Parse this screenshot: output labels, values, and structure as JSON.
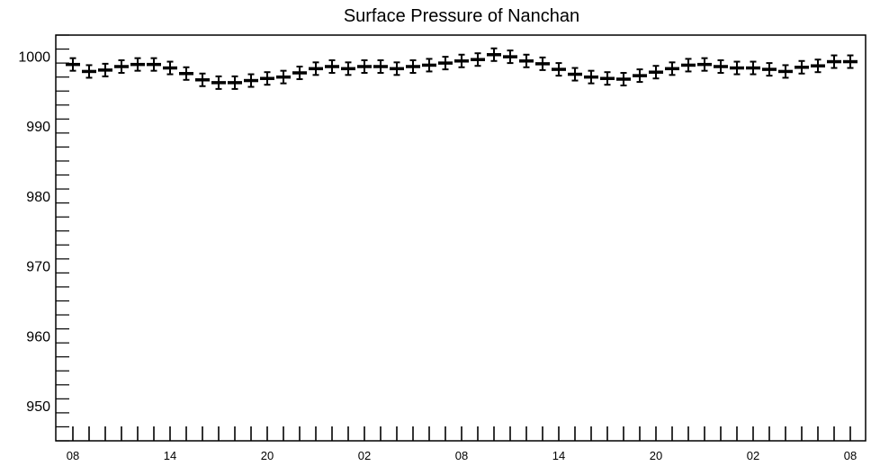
{
  "chart_data": {
    "type": "line",
    "title": "Surface Pressure of Nanchan",
    "xlabel": "",
    "ylabel": "",
    "ylim": [
      945,
      1003
    ],
    "yticks": [
      950,
      960,
      970,
      980,
      990,
      1000
    ],
    "xtick_labels": [
      {
        "index": 0,
        "label": "08"
      },
      {
        "index": 6,
        "label": "14"
      },
      {
        "index": 12,
        "label": "20"
      },
      {
        "index": 18,
        "label": "02"
      },
      {
        "index": 24,
        "label": "08"
      },
      {
        "index": 30,
        "label": "14"
      },
      {
        "index": 36,
        "label": "20"
      },
      {
        "index": 42,
        "label": "02"
      },
      {
        "index": 48,
        "label": "08"
      }
    ],
    "grid": false,
    "series": [
      {
        "values": [
          998.8,
          997.8,
          998.0,
          998.5,
          998.8,
          998.8,
          998.3,
          997.5,
          996.6,
          996.2,
          996.2,
          996.5,
          996.8,
          997.0,
          997.6,
          998.2,
          998.5,
          998.2,
          998.5,
          998.5,
          998.2,
          998.5,
          998.7,
          999.0,
          999.3,
          999.5,
          1000.2,
          999.9,
          999.3,
          998.9,
          998.1,
          997.4,
          997.0,
          996.8,
          996.7,
          997.2,
          997.7,
          998.2,
          998.7,
          998.8,
          998.5,
          998.3,
          998.3,
          998.1,
          997.8,
          998.4,
          998.6,
          999.2,
          999.2
        ],
        "errors": [
          0.9,
          0.9,
          0.9,
          0.9,
          0.9,
          0.9,
          0.9,
          0.9,
          0.9,
          0.9,
          0.9,
          0.9,
          0.9,
          0.9,
          0.9,
          0.9,
          0.9,
          0.9,
          0.9,
          0.9,
          0.9,
          0.9,
          0.9,
          0.9,
          0.9,
          0.9,
          0.9,
          0.9,
          0.9,
          0.9,
          0.9,
          0.9,
          0.9,
          0.9,
          0.9,
          0.9,
          0.9,
          0.9,
          0.9,
          0.9,
          0.9,
          0.9,
          0.9,
          0.9,
          0.9,
          0.9,
          0.9,
          0.9,
          0.9
        ]
      }
    ]
  }
}
